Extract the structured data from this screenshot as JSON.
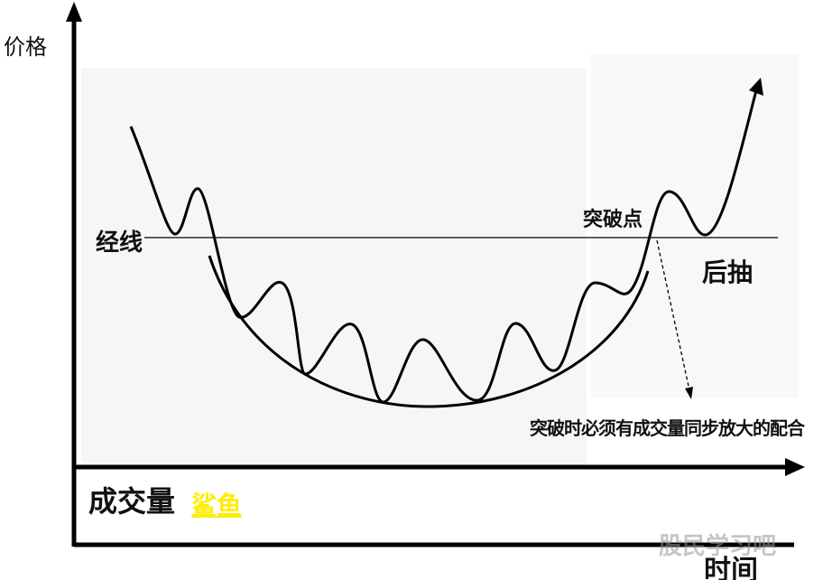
{
  "labels": {
    "y_axis": "价格",
    "neckline": "经线",
    "breakout_point": "突破点",
    "pullback": "后抽",
    "volume_note": "突破时必须有成交量同步放大的配合",
    "volume": "成交量",
    "shark": "鲨鱼",
    "x_axis": "时间"
  },
  "watermark": "股民学习吧",
  "colors": {
    "line": "#000000",
    "shark_text": "#ffee00",
    "background": "#ffffff"
  }
}
